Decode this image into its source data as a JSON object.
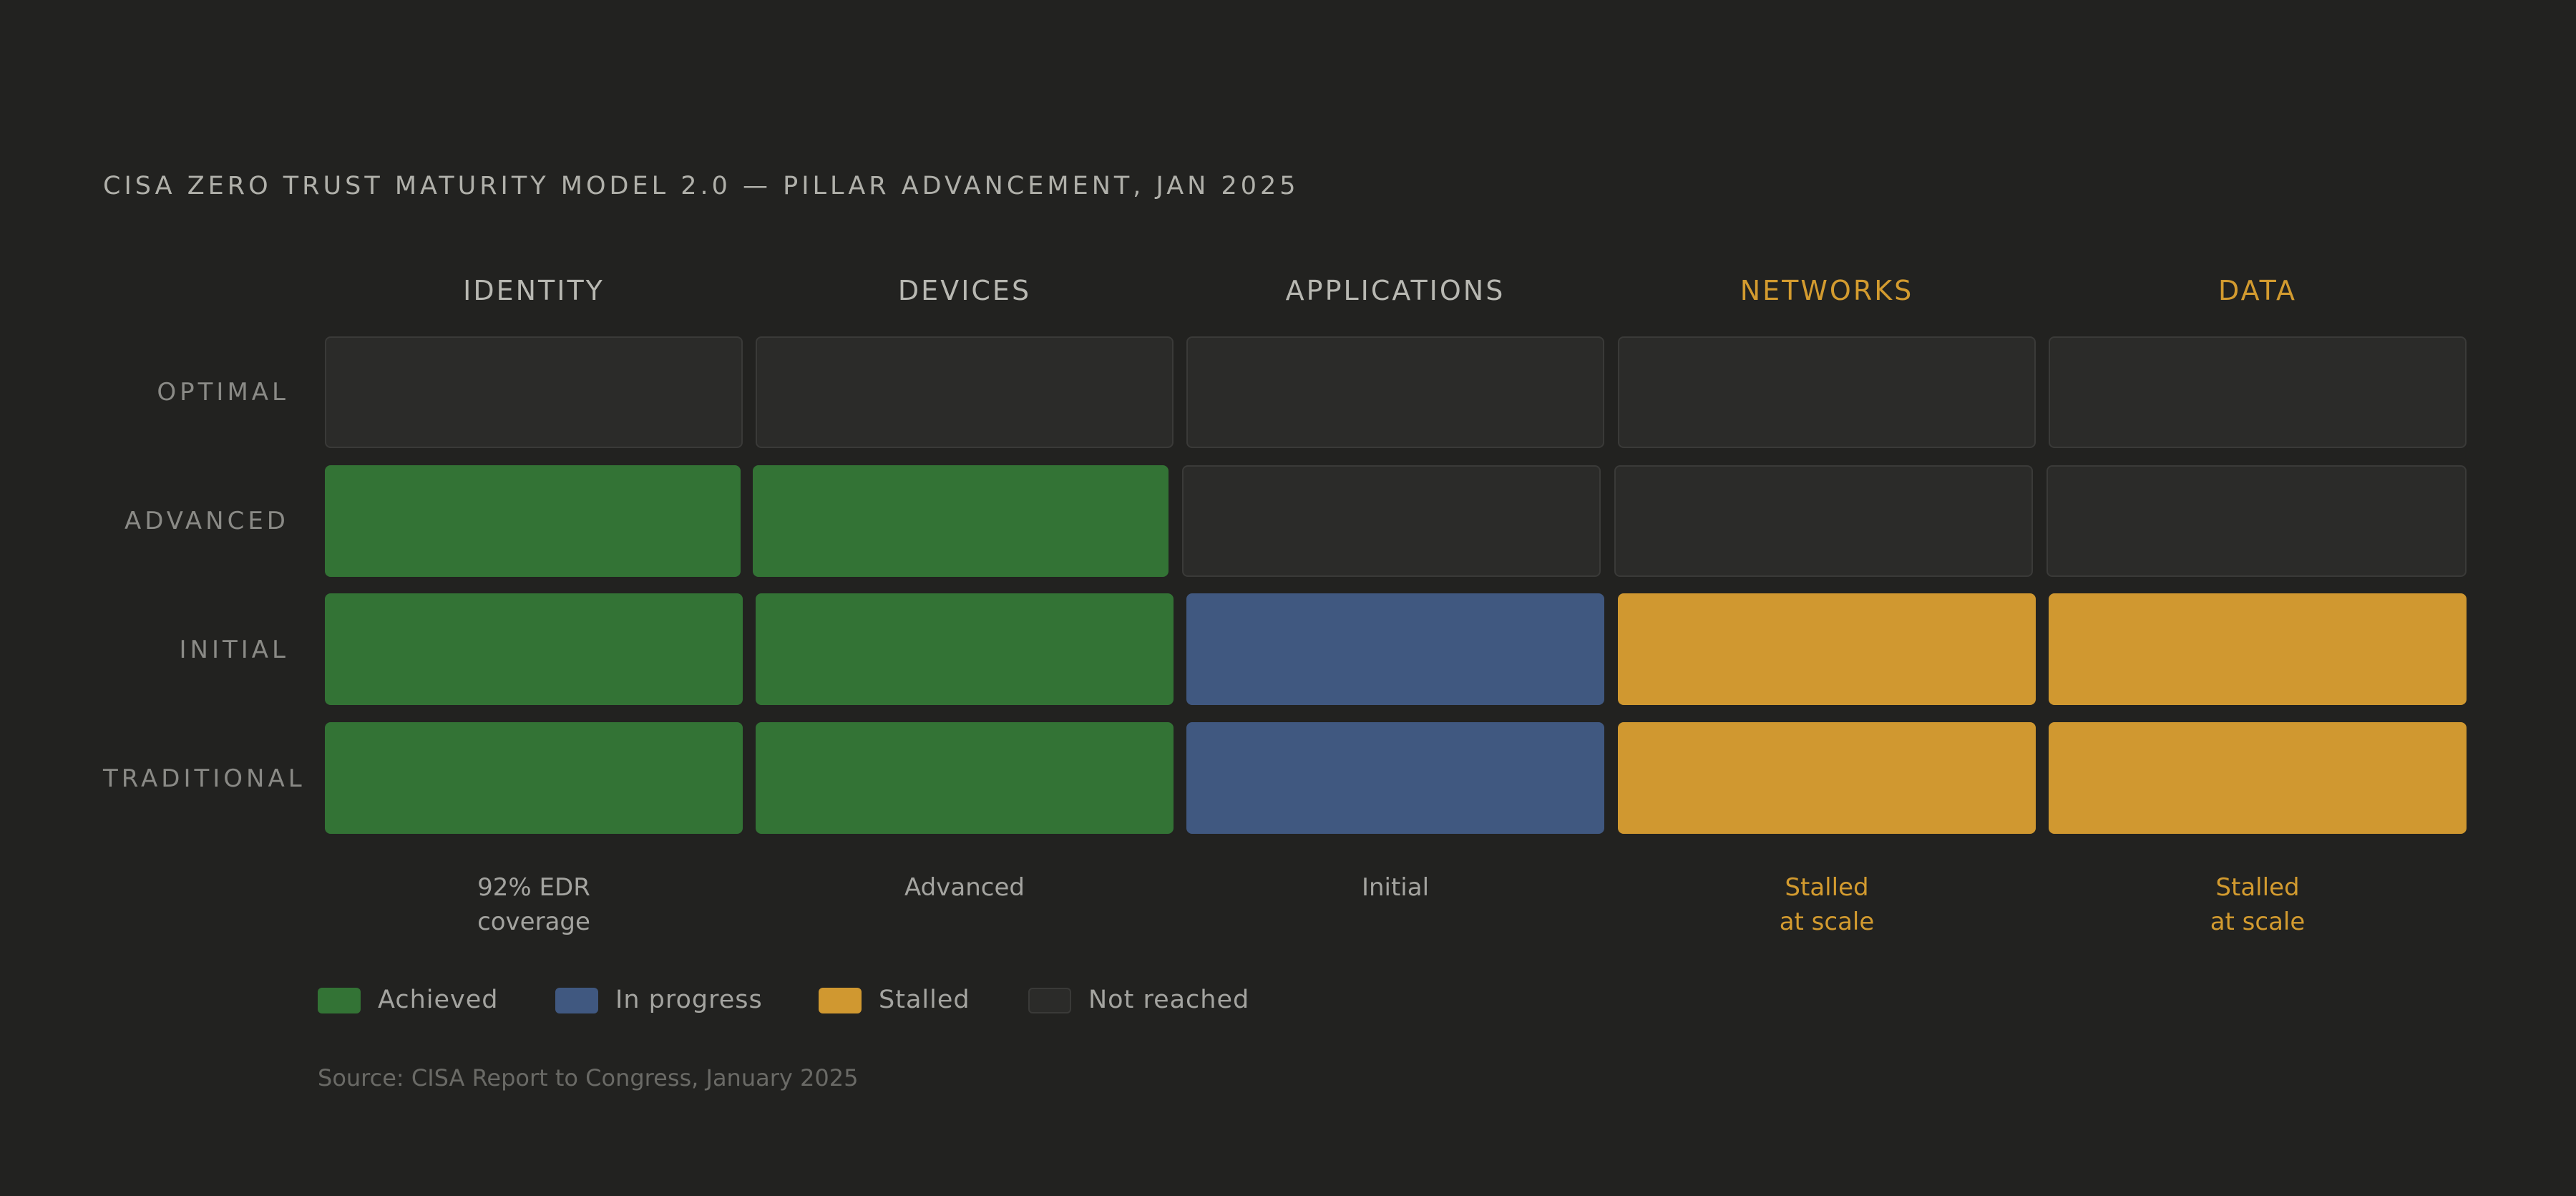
{
  "chart_data": {
    "type": "heatmap",
    "title": "CISA ZERO TRUST MATURITY MODEL 2.0 — PILLAR ADVANCEMENT, JAN 2025",
    "columns": [
      "IDENTITY",
      "DEVICES",
      "APPLICATIONS",
      "NETWORKS",
      "DATA"
    ],
    "rows": [
      "OPTIMAL",
      "ADVANCED",
      "INITIAL",
      "TRADITIONAL"
    ],
    "cells": [
      [
        "not_reached",
        "not_reached",
        "not_reached",
        "not_reached",
        "not_reached"
      ],
      [
        "achieved",
        "achieved",
        "not_reached",
        "not_reached",
        "not_reached"
      ],
      [
        "achieved",
        "achieved",
        "in_progress",
        "stalled",
        "stalled"
      ],
      [
        "achieved",
        "achieved",
        "in_progress",
        "stalled",
        "stalled"
      ]
    ],
    "column_status": [
      [
        "92% EDR",
        "coverage"
      ],
      [
        "Advanced"
      ],
      [
        "Initial"
      ],
      [
        "Stalled",
        "at scale"
      ],
      [
        "Stalled",
        "at scale"
      ]
    ],
    "highlighted_columns": [
      "NETWORKS",
      "DATA"
    ],
    "legend": [
      {
        "key": "achieved",
        "label": "Achieved",
        "color": "#337335"
      },
      {
        "key": "in_progress",
        "label": "In progress",
        "color": "#405880"
      },
      {
        "key": "stalled",
        "label": "Stalled",
        "color": "#d09830"
      },
      {
        "key": "not_reached",
        "label": "Not reached",
        "color": "#2b2b29"
      }
    ],
    "legend_placement": "bottom-left",
    "source": "Source: CISA Report to Congress, January 2025"
  }
}
